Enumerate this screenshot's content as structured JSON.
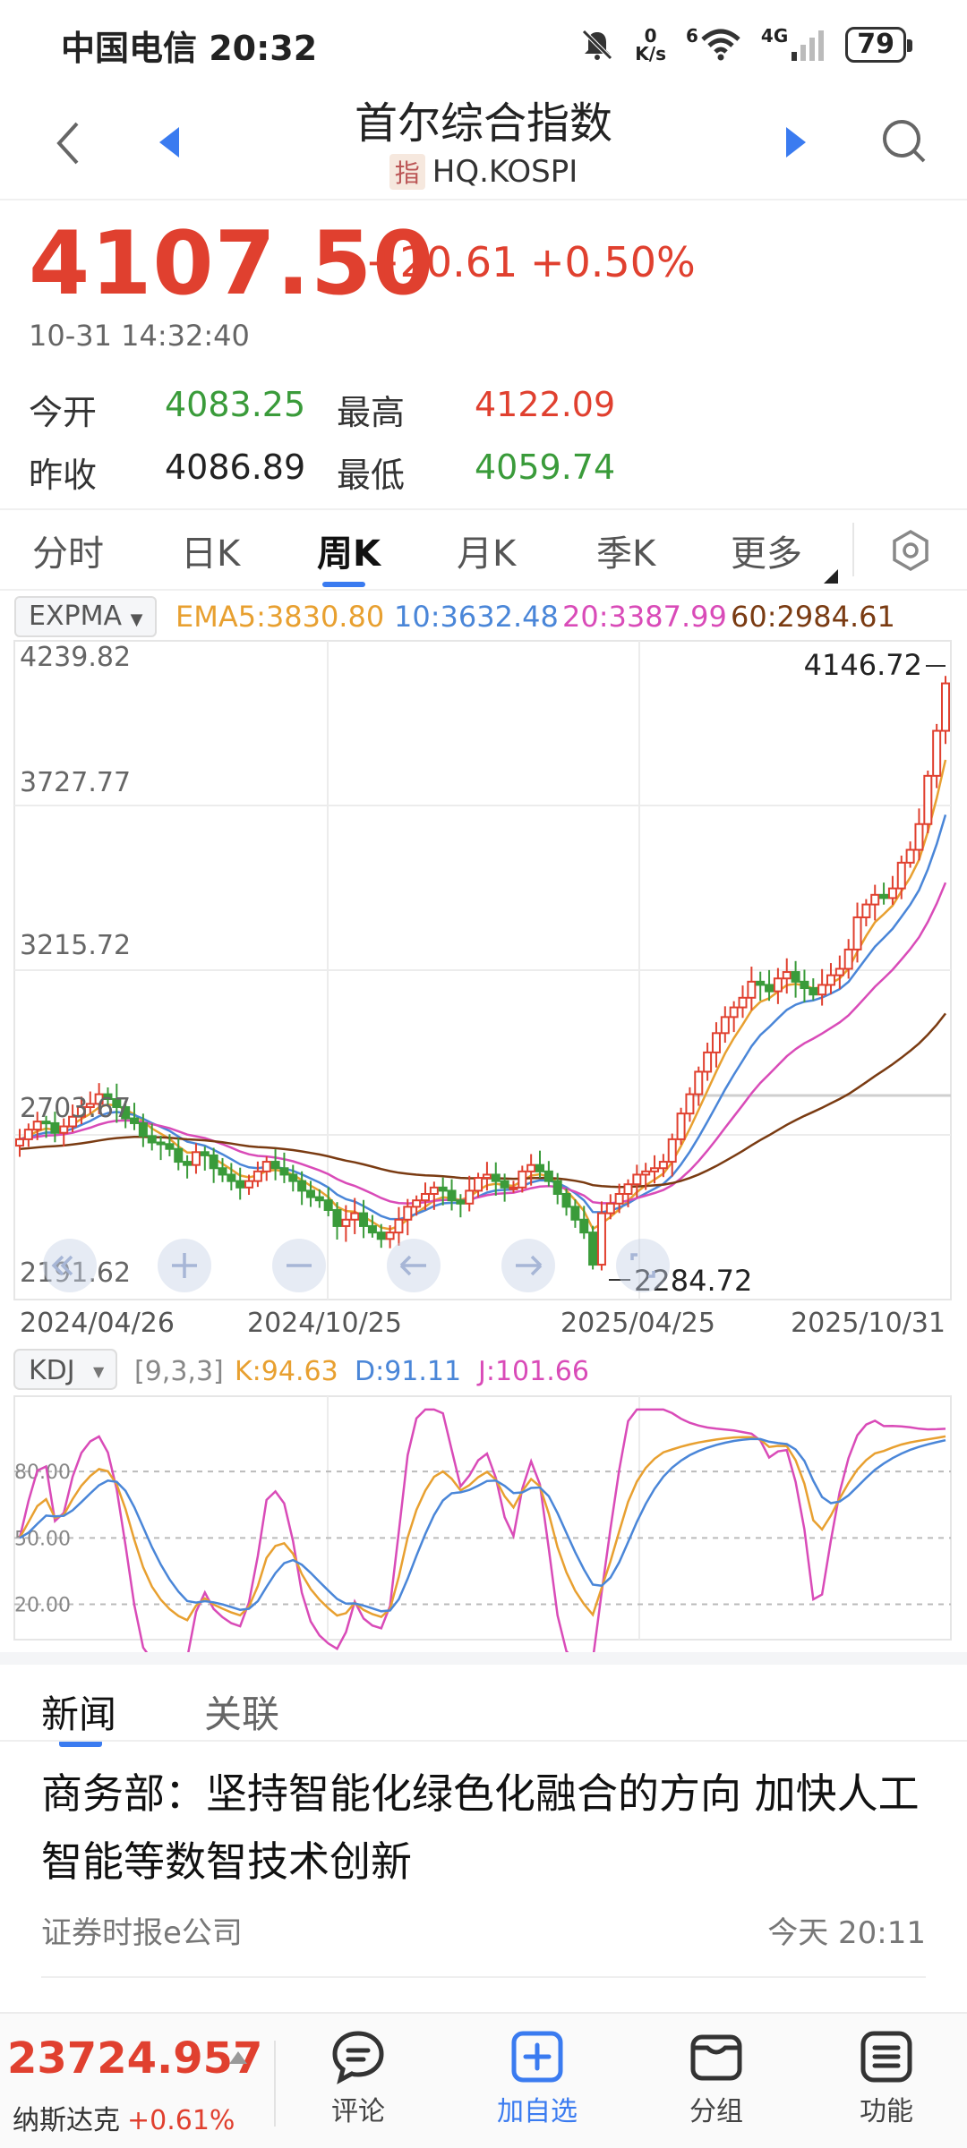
{
  "status_bar": {
    "carrier_time": "中国电信 20:32",
    "net_speed_value": "0",
    "net_speed_unit": "K/s",
    "wifi_badge": "6",
    "signal_label": "4G",
    "battery": "79",
    "icons": [
      "mute-bell-icon",
      "wifi-icon",
      "signal-icon",
      "battery-icon"
    ]
  },
  "header": {
    "title": "首尔综合指数",
    "tag": "指",
    "code": "HQ.KOSPI"
  },
  "quote": {
    "price": "4107.50",
    "change": "+20.61",
    "change_pct": "+0.50%",
    "timestamp": "10-31 14:32:40",
    "open_label": "今开",
    "open": "4083.25",
    "high_label": "最高",
    "high": "4122.09",
    "prev_close_label": "昨收",
    "prev_close": "4086.89",
    "low_label": "最低",
    "low": "4059.74"
  },
  "period_tabs": [
    "分时",
    "日K",
    "周K",
    "月K",
    "季K",
    "更多"
  ],
  "active_period": "周K",
  "indicator": {
    "name": "EXPMA",
    "ema5": "EMA5:3830.80",
    "ema10": "10:3632.48",
    "ema20": "20:3387.99",
    "ema60": "60:2984.61",
    "colors": {
      "ema5": "#e8a030",
      "ema10": "#4a86d8",
      "ema20": "#d94bb8",
      "ema60": "#7a3b12",
      "up": "#e0402f",
      "down": "#3a9b3a"
    }
  },
  "chart_data": [
    {
      "type": "candlestick",
      "y_axis_labels": [
        "4239.82",
        "3727.77",
        "3215.72",
        "2703.67",
        "2191.62"
      ],
      "ylim": [
        2191.62,
        4239.82
      ],
      "x_axis_labels": [
        "2024/04/26",
        "2024/10/25",
        "2025/04/25",
        "2025/10/31"
      ],
      "max_marker": "4146.72",
      "min_marker": "2284.72",
      "reference_price": 2703.67,
      "weekly_close": [
        2690,
        2720,
        2745,
        2740,
        2710,
        2730,
        2760,
        2790,
        2800,
        2830,
        2815,
        2790,
        2755,
        2740,
        2700,
        2680,
        2675,
        2660,
        2620,
        2610,
        2650,
        2640,
        2600,
        2580,
        2560,
        2540,
        2560,
        2590,
        2620,
        2600,
        2580,
        2560,
        2530,
        2510,
        2500,
        2470,
        2420,
        2440,
        2460,
        2420,
        2400,
        2380,
        2400,
        2440,
        2480,
        2500,
        2520,
        2540,
        2530,
        2500,
        2490,
        2530,
        2570,
        2580,
        2560,
        2540,
        2540,
        2590,
        2610,
        2590,
        2560,
        2520,
        2480,
        2440,
        2400,
        2300,
        2460,
        2490,
        2520,
        2550,
        2580,
        2590,
        2600,
        2620,
        2690,
        2770,
        2830,
        2900,
        2960,
        3020,
        3070,
        3100,
        3130,
        3180,
        3170,
        3150,
        3190,
        3210,
        3180,
        3160,
        3140,
        3170,
        3200,
        3220,
        3280,
        3380,
        3420,
        3450,
        3440,
        3470,
        3550,
        3590,
        3670,
        3820,
        3960,
        4107.5
      ]
    },
    {
      "type": "line",
      "name": "KDJ",
      "params": "[9,3,3]",
      "k_label": "K:94.63",
      "d_label": "D:91.11",
      "j_label": "J:101.66",
      "y_ticks": [
        "80.00",
        "50.00",
        "20.00"
      ],
      "ylim": [
        0,
        110
      ]
    }
  ],
  "news_tabs": [
    "新闻",
    "关联"
  ],
  "news": {
    "title": "商务部：坚持智能化绿色化融合的方向 加快人工智能等数智技术创新",
    "source": "证券时报e公司",
    "time": "今天 20:11"
  },
  "bottom_bar": {
    "ticker_price": "23724.957",
    "ticker_name": "纳斯达克",
    "ticker_pct": "+0.61%",
    "buttons": [
      {
        "label": "评论",
        "icon": "comment-icon"
      },
      {
        "label": "加自选",
        "icon": "add-watchlist-icon"
      },
      {
        "label": "分组",
        "icon": "group-icon"
      },
      {
        "label": "功能",
        "icon": "menu-icon"
      }
    ]
  }
}
